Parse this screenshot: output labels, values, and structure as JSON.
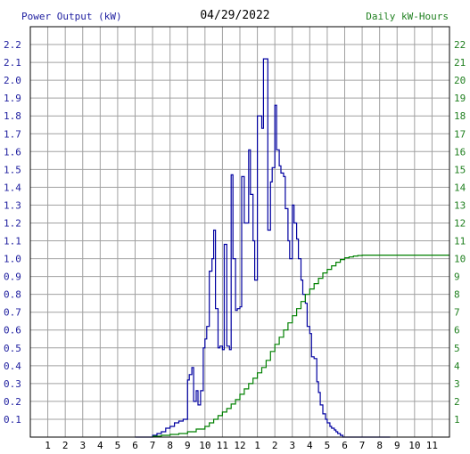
{
  "chart_data": {
    "type": "line",
    "title": "04/29/2022",
    "left_axis_title": "Power Output (kW)",
    "right_axis_title": "Daily kW-Hours",
    "x_tick_labels": [
      "1",
      "2",
      "3",
      "4",
      "5",
      "6",
      "7",
      "8",
      "9",
      "10",
      "11",
      "12",
      "1",
      "2",
      "3",
      "4",
      "5",
      "6",
      "7",
      "8",
      "9",
      "10",
      "11"
    ],
    "xlim": [
      0,
      24
    ],
    "ylim_left": [
      0,
      2.3
    ],
    "ylim_right": [
      0,
      23
    ],
    "left_ticks": [
      "0.1",
      "0.2",
      "0.3",
      "0.4",
      "0.5",
      "0.6",
      "0.7",
      "0.8",
      "0.9",
      "1.0",
      "1.1",
      "1.2",
      "1.3",
      "1.4",
      "1.5",
      "1.6",
      "1.7",
      "1.8",
      "1.9",
      "2.0",
      "2.1",
      "2.2"
    ],
    "right_ticks": [
      "1",
      "2",
      "3",
      "4",
      "5",
      "6",
      "7",
      "8",
      "9",
      "10",
      "11",
      "12",
      "13",
      "14",
      "15",
      "16",
      "17",
      "18",
      "19",
      "20",
      "21",
      "22"
    ],
    "grid": true,
    "colors": {
      "power": "#0000a0",
      "energy": "#008000",
      "grid": "#a0a0a0",
      "left_text": "#2020a0",
      "right_text": "#208020"
    },
    "series": [
      {
        "axis": "left",
        "step": true,
        "x": [
          6,
          6.5,
          7,
          7.25,
          7.5,
          7.75,
          8,
          8.25,
          8.5,
          8.75,
          9,
          9.1,
          9.25,
          9.35,
          9.5,
          9.6,
          9.75,
          9.9,
          10,
          10.1,
          10.25,
          10.4,
          10.5,
          10.6,
          10.75,
          10.85,
          11,
          11.1,
          11.25,
          11.4,
          11.5,
          11.6,
          11.75,
          11.85,
          12,
          12.1,
          12.25,
          12.4,
          12.5,
          12.6,
          12.75,
          12.85,
          13,
          13.1,
          13.25,
          13.35,
          13.5,
          13.6,
          13.75,
          13.85,
          14,
          14.1,
          14.25,
          14.35,
          14.5,
          14.6,
          14.75,
          14.85,
          15,
          15.1,
          15.25,
          15.35,
          15.5,
          15.6,
          15.75,
          15.85,
          16,
          16.1,
          16.25,
          16.4,
          16.5,
          16.6,
          16.75,
          16.9,
          17,
          17.15,
          17.25,
          17.4,
          17.5,
          17.6,
          17.75,
          17.9,
          18,
          18.1,
          18.25,
          18.4,
          18.5,
          18.6,
          18.75,
          18.9,
          19,
          19.25,
          19.5,
          19.75,
          20,
          20.25,
          20.5
        ],
        "values": [
          0,
          0,
          0.01,
          0.02,
          0.03,
          0.05,
          0.06,
          0.08,
          0.09,
          0.1,
          0.32,
          0.35,
          0.39,
          0.2,
          0.26,
          0.18,
          0.26,
          0.5,
          0.55,
          0.62,
          0.93,
          1.0,
          1.16,
          0.72,
          0.5,
          0.51,
          0.49,
          1.08,
          0.51,
          0.49,
          1.47,
          1.0,
          0.71,
          0.72,
          0.73,
          1.46,
          1.2,
          1.2,
          1.61,
          1.36,
          1.1,
          0.88,
          1.8,
          1.8,
          1.73,
          2.12,
          2.12,
          1.16,
          1.43,
          1.51,
          1.86,
          1.61,
          1.52,
          1.48,
          1.46,
          1.28,
          1.1,
          1.0,
          1.3,
          1.2,
          1.11,
          1.0,
          0.88,
          0.8,
          0.75,
          0.62,
          0.58,
          0.45,
          0.44,
          0.31,
          0.25,
          0.18,
          0.13,
          0.1,
          0.08,
          0.06,
          0.05,
          0.04,
          0.03,
          0.02,
          0.01,
          0,
          0,
          0,
          0,
          0,
          0,
          0,
          0,
          0,
          0,
          0,
          0,
          0,
          0,
          0,
          0
        ]
      },
      {
        "axis": "right",
        "step": true,
        "x": [
          7,
          7.5,
          8,
          8.5,
          9,
          9.5,
          10,
          10.25,
          10.5,
          10.75,
          11,
          11.25,
          11.5,
          11.75,
          12,
          12.25,
          12.5,
          12.75,
          13,
          13.25,
          13.5,
          13.75,
          14,
          14.25,
          14.5,
          14.75,
          15,
          15.25,
          15.5,
          15.75,
          16,
          16.25,
          16.5,
          16.75,
          17,
          17.25,
          17.5,
          17.75,
          18,
          18.25,
          18.5,
          18.75,
          19,
          19.5,
          20,
          21,
          22,
          23,
          24
        ],
        "values": [
          0.05,
          0.1,
          0.15,
          0.2,
          0.3,
          0.45,
          0.6,
          0.8,
          1.0,
          1.2,
          1.4,
          1.6,
          1.85,
          2.1,
          2.4,
          2.7,
          3.0,
          3.3,
          3.6,
          3.9,
          4.3,
          4.8,
          5.2,
          5.6,
          6.0,
          6.4,
          6.8,
          7.2,
          7.6,
          8.0,
          8.3,
          8.6,
          8.9,
          9.2,
          9.4,
          9.6,
          9.8,
          9.95,
          10.05,
          10.1,
          10.15,
          10.18,
          10.2,
          10.2,
          10.2,
          10.2,
          10.2,
          10.2,
          10.2
        ]
      }
    ]
  }
}
